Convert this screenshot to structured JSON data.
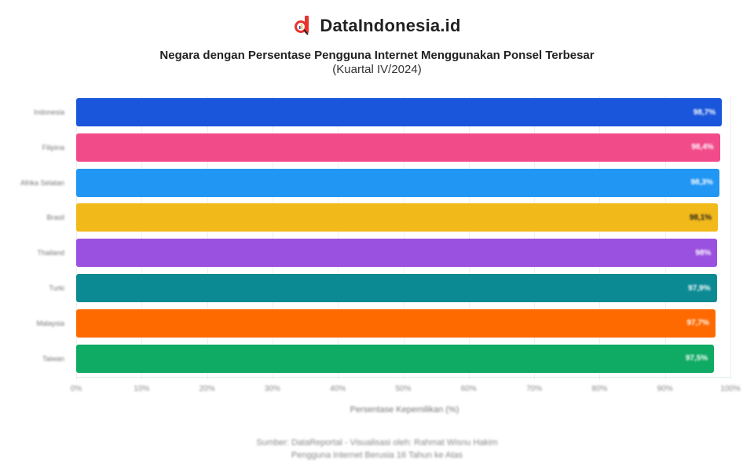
{
  "brand": {
    "name": "DataIndonesia.id",
    "logo_color": "#E8322E"
  },
  "header": {
    "title": "Negara dengan Persentase Pengguna Internet Menggunakan Ponsel Terbesar",
    "subtitle": "(Kuartal IV/2024)"
  },
  "footer": {
    "source_line1": "Sumber: DataReportal - Visualisasi oleh: Rahmat Wisnu Hakim",
    "source_line2": "Pengguna Internet Berusia 16 Tahun ke Atas"
  },
  "chart_data": {
    "type": "bar",
    "orientation": "horizontal",
    "title": "Negara dengan Persentase Pengguna Internet Menggunakan Ponsel Terbesar",
    "subtitle": "(Kuartal IV/2024)",
    "xlabel": "Persentase Kepemilikan (%)",
    "ylabel": "",
    "xlim": [
      0,
      100
    ],
    "x_ticks": [
      "0%",
      "10%",
      "20%",
      "30%",
      "40%",
      "50%",
      "60%",
      "70%",
      "80%",
      "90%",
      "100%"
    ],
    "grid": true,
    "legend": null,
    "categories": [
      "Indonesia",
      "Filipina",
      "Afrika Selatan",
      "Brasil",
      "Thailand",
      "Turki",
      "Malaysia",
      "Taiwan"
    ],
    "values": [
      98.7,
      98.4,
      98.3,
      98.1,
      98.0,
      97.9,
      97.7,
      97.5
    ],
    "value_labels": [
      "98,7%",
      "98,4%",
      "98,3%",
      "98,1%",
      "98%",
      "97,9%",
      "97,7%",
      "97,5%"
    ],
    "colors": [
      "#1A56DB",
      "#F24B8A",
      "#2196F3",
      "#F2B91A",
      "#9B51E0",
      "#0B8A94",
      "#FF6A00",
      "#0FAA63"
    ]
  }
}
